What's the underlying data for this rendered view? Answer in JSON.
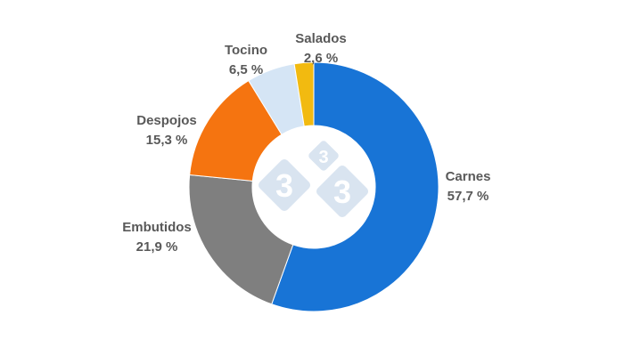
{
  "chart_data": {
    "type": "pie",
    "donut": true,
    "start_angle_deg": 0,
    "direction": "clockwise",
    "series": [
      {
        "name": "Carnes",
        "value": 57.7,
        "label": "57,7 %",
        "color": "#1874D6"
      },
      {
        "name": "Embutidos",
        "value": 21.9,
        "label": "21,9 %",
        "color": "#7F7F7F"
      },
      {
        "name": "Despojos",
        "value": 15.3,
        "label": "15,3 %",
        "color": "#F57410"
      },
      {
        "name": "Tocino",
        "value": 6.5,
        "label": "6,5 %",
        "color": "#D5E5F5"
      },
      {
        "name": "Salados",
        "value": 2.6,
        "label": "2,6 %",
        "color": "#F2BA10"
      }
    ]
  },
  "logo": {
    "text": "3",
    "color": "#D9E4F0"
  }
}
